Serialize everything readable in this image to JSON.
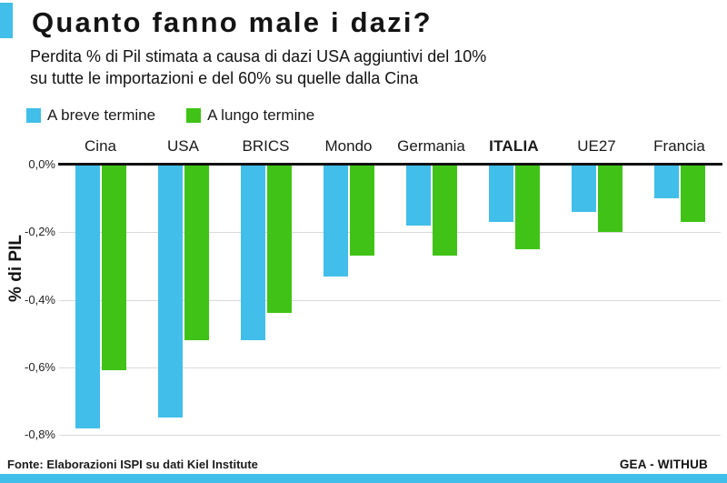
{
  "header": {
    "title": "Quanto fanno male i dazi?",
    "subtitle_line1": "Perdita % di Pil stimata a causa di dazi USA aggiuntivi del 10%",
    "subtitle_line2": "su tutte le importazioni e del 60% su quelle dalla Cina"
  },
  "legend": [
    {
      "label": "A breve termine",
      "color": "#41BEE9"
    },
    {
      "label": "A lungo termine",
      "color": "#40C316"
    }
  ],
  "chart_data": {
    "type": "bar",
    "title": "Quanto fanno male i dazi?",
    "categories": [
      "Cina",
      "USA",
      "BRICS",
      "Mondo",
      "Germania",
      "ITALIA",
      "UE27",
      "Francia"
    ],
    "series": [
      {
        "name": "A breve termine",
        "color": "#41BEE9",
        "values": [
          -0.78,
          -0.75,
          -0.52,
          -0.33,
          -0.18,
          -0.17,
          -0.14,
          -0.1
        ]
      },
      {
        "name": "A lungo termine",
        "color": "#40C316",
        "values": [
          -0.61,
          -0.52,
          -0.44,
          -0.27,
          -0.27,
          -0.25,
          -0.2,
          -0.17
        ]
      }
    ],
    "xlabel": "",
    "ylabel": "% di PIL",
    "ylim": [
      -0.8,
      0
    ],
    "y_ticks": [
      {
        "label": "0,0%",
        "value": 0
      },
      {
        "label": "-0,2%",
        "value": -0.2
      },
      {
        "label": "-0,4%",
        "value": -0.4
      },
      {
        "label": "-0,6%",
        "value": -0.6
      },
      {
        "label": "-0,8%",
        "value": -0.8
      }
    ],
    "grid": true,
    "legend_position": "top-left",
    "emphasized_category": "ITALIA"
  },
  "footer": {
    "source": "Fonte: Elaborazioni ISPI su dati Kiel Institute",
    "brand": "GEA - WITHUB"
  },
  "colors": {
    "accent_blue": "#41BEE9",
    "accent_green": "#40C316",
    "zero_line": "#111111",
    "gridline": "#d9d9d9",
    "text": "#161616"
  }
}
